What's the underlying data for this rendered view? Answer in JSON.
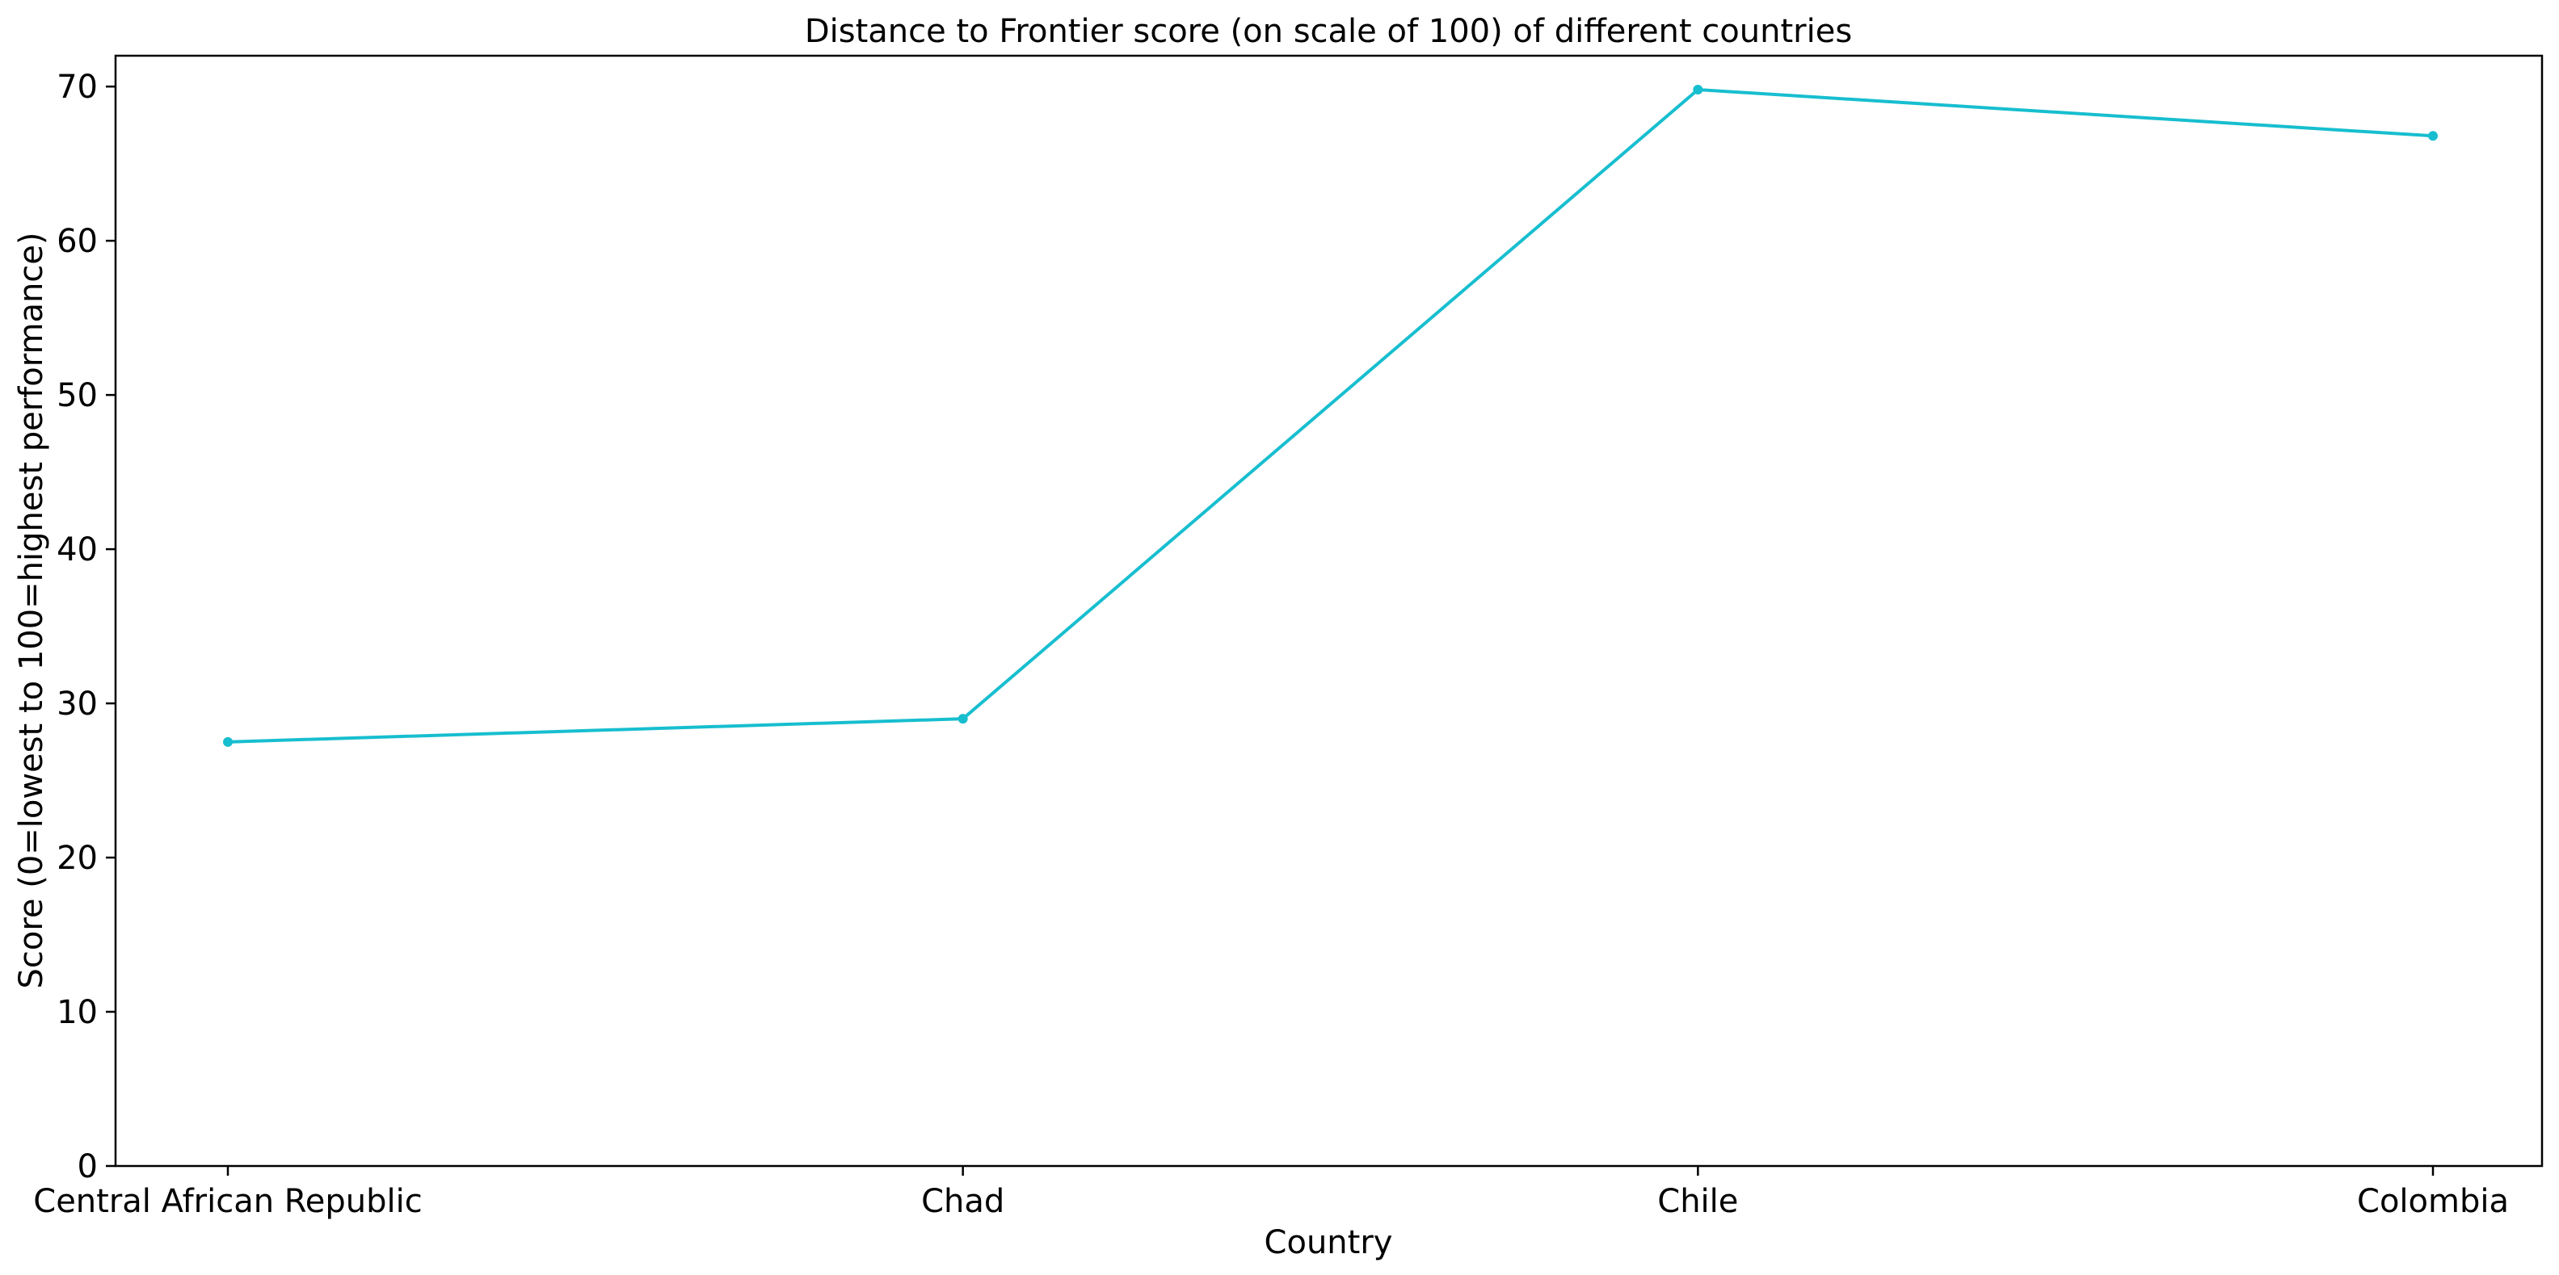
{
  "chart_data": {
    "type": "line",
    "title": "Distance to Frontier score (on scale of 100) of different countries",
    "xlabel": "Country",
    "ylabel": "Score (0=lowest to 100=highest performance)",
    "categories": [
      "Central African Republic",
      "Chad",
      "Chile",
      "Colombia"
    ],
    "values": [
      27.5,
      29.0,
      69.8,
      66.8
    ],
    "ylim": [
      0,
      72
    ],
    "yticks": [
      0,
      10,
      20,
      30,
      40,
      50,
      60,
      70
    ],
    "grid": false,
    "legend": "none",
    "line_color": "#17becf"
  }
}
